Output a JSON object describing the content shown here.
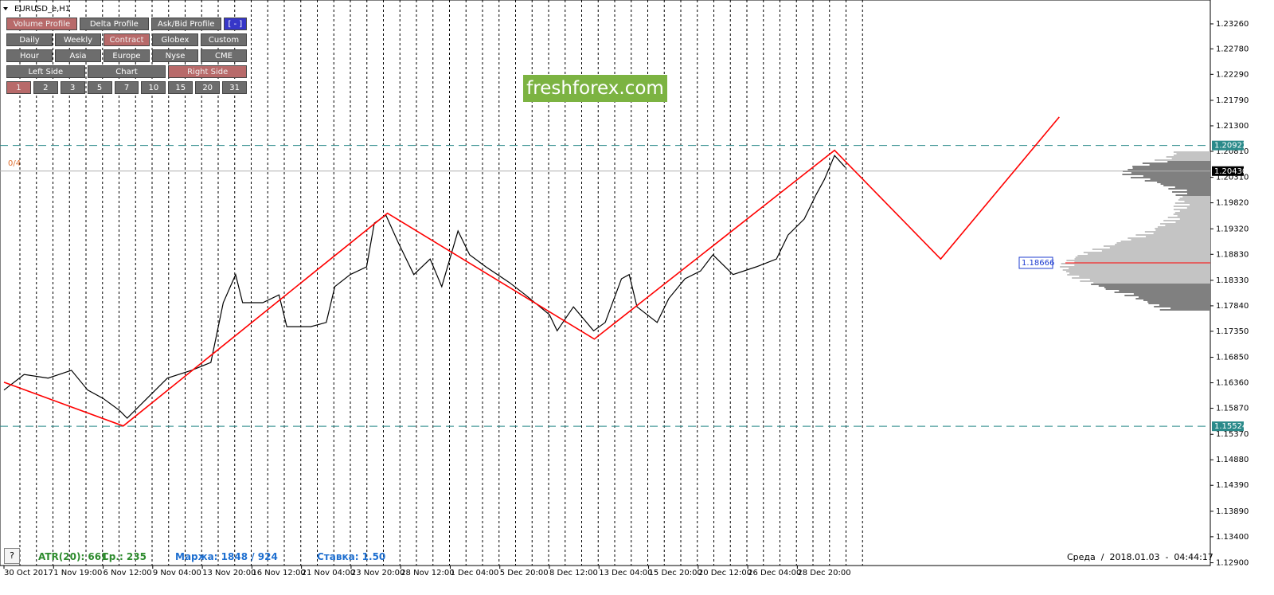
{
  "ui": {
    "symbol": "EURUSD_e,H1",
    "marker": "0/4",
    "brand": "freshforex.com",
    "help": "?",
    "buttons": [
      [
        {
          "label": "Volume Profile",
          "active": true
        },
        {
          "label": "Delta Profile",
          "active": false
        },
        {
          "label": "Ask/Bid Profile",
          "active": false
        },
        {
          "label": "[ - ]",
          "active": false,
          "blue": true
        }
      ],
      [
        {
          "label": "Daily",
          "active": false
        },
        {
          "label": "Weekly",
          "active": false
        },
        {
          "label": "Contract",
          "active": true
        },
        {
          "label": "Globex",
          "active": false
        },
        {
          "label": "Custom",
          "active": false
        }
      ],
      [
        {
          "label": "Hour",
          "active": false
        },
        {
          "label": "Asia",
          "active": false
        },
        {
          "label": "Europe",
          "active": false
        },
        {
          "label": "Nyse",
          "active": false
        },
        {
          "label": "CME",
          "active": false
        }
      ],
      [
        {
          "label": "Left Side",
          "active": false
        },
        {
          "label": "Chart",
          "active": false
        },
        {
          "label": "Right Side",
          "active": true
        }
      ],
      [
        {
          "label": "1",
          "active": true
        },
        {
          "label": "2",
          "active": false
        },
        {
          "label": "3",
          "active": false
        },
        {
          "label": "5",
          "active": false
        },
        {
          "label": "7",
          "active": false
        },
        {
          "label": "10",
          "active": false
        },
        {
          "label": "15",
          "active": false
        },
        {
          "label": "20",
          "active": false
        },
        {
          "label": "31",
          "active": false
        }
      ]
    ],
    "status": [
      {
        "text": "ATR(20): 661",
        "color": "#2e8b2e"
      },
      {
        "text": "Ср.: 235",
        "color": "#2e8b2e"
      },
      {
        "text": "Маржа: 1848 / 924",
        "color": "#1e6fd0"
      },
      {
        "text": "Ставка: 1.50",
        "color": "#1e6fd0"
      }
    ],
    "clock": "Среда  /  2018.01.03  -  04:44:17"
  },
  "chart_data": {
    "type": "line",
    "xlim": [
      -5.14,
      1557
    ],
    "ylim": [
      1.12847,
      1.23719
    ],
    "xticks": [
      {
        "value": 0,
        "label": "30 Oct 2017"
      },
      {
        "value": 64,
        "label": "1 Nov 19:00"
      },
      {
        "value": 128,
        "label": "6 Nov 12:00"
      },
      {
        "value": 192,
        "label": "9 Nov 04:00"
      },
      {
        "value": 256,
        "label": "13 Nov 20:00"
      },
      {
        "value": 320,
        "label": "16 Nov 12:00"
      },
      {
        "value": 384,
        "label": "21 Nov 04:00"
      },
      {
        "value": 448,
        "label": "23 Nov 20:00"
      },
      {
        "value": 512,
        "label": "28 Nov 12:00"
      },
      {
        "value": 576,
        "label": "1 Dec 04:00"
      },
      {
        "value": 640,
        "label": "5 Dec 20:00"
      },
      {
        "value": 704,
        "label": "8 Dec 12:00"
      },
      {
        "value": 768,
        "label": "13 Dec 04:00"
      },
      {
        "value": 832,
        "label": "15 Dec 20:00"
      },
      {
        "value": 896,
        "label": "20 Dec 12:00"
      },
      {
        "value": 960,
        "label": "26 Dec 04:00"
      },
      {
        "value": 1024,
        "label": "28 Dec 20:00"
      }
    ],
    "yticks": [
      {
        "value": 1.2326,
        "label": "1.23260"
      },
      {
        "value": 1.2278,
        "label": "1.22780"
      },
      {
        "value": 1.2229,
        "label": "1.22290"
      },
      {
        "value": 1.2179,
        "label": "1.21790"
      },
      {
        "value": 1.213,
        "label": "1.21300"
      },
      {
        "value": 1.2081,
        "label": "1.20810"
      },
      {
        "value": 1.2031,
        "label": "1.20310"
      },
      {
        "value": 1.1982,
        "label": "1.19820"
      },
      {
        "value": 1.1932,
        "label": "1.19320"
      },
      {
        "value": 1.1883,
        "label": "1.18830"
      },
      {
        "value": 1.1833,
        "label": "1.18330"
      },
      {
        "value": 1.1784,
        "label": "1.17840"
      },
      {
        "value": 1.1735,
        "label": "1.17350"
      },
      {
        "value": 1.1685,
        "label": "1.16850"
      },
      {
        "value": 1.1636,
        "label": "1.16360"
      },
      {
        "value": 1.1587,
        "label": "1.15870"
      },
      {
        "value": 1.1537,
        "label": "1.15370"
      },
      {
        "value": 1.1488,
        "label": "1.14880"
      },
      {
        "value": 1.1439,
        "label": "1.14390"
      },
      {
        "value": 1.1389,
        "label": "1.13890"
      },
      {
        "value": 1.134,
        "label": "1.13400"
      },
      {
        "value": 1.129,
        "label": "1.12900"
      }
    ],
    "series": [
      {
        "color": "#000000",
        "x": [
          0,
          26,
          57,
          87,
          108,
          128,
          149,
          159,
          180,
          211,
          242,
          267,
          283,
          299,
          308,
          334,
          355,
          365,
          396,
          416,
          427,
          447,
          468,
          478,
          493,
          509,
          529,
          550,
          565,
          586,
          601,
          622,
          653,
          673,
          704,
          714,
          735,
          761,
          776,
          797,
          807,
          817,
          843,
          858,
          879,
          899,
          915,
          941,
          971,
          997,
          1012,
          1033,
          1048,
          1059,
          1072,
          1086
        ],
        "values": [
          1.1622,
          1.1652,
          1.1645,
          1.166,
          1.1622,
          1.1606,
          1.1583,
          1.1568,
          1.1599,
          1.1645,
          1.166,
          1.1675,
          1.179,
          1.1844,
          1.179,
          1.179,
          1.1805,
          1.1744,
          1.1744,
          1.1752,
          1.1821,
          1.1844,
          1.1859,
          1.1943,
          1.1958,
          1.1905,
          1.1844,
          1.1874,
          1.1821,
          1.1928,
          1.1882,
          1.1859,
          1.1828,
          1.1805,
          1.1767,
          1.1736,
          1.1782,
          1.1736,
          1.1752,
          1.1836,
          1.1844,
          1.1782,
          1.1752,
          1.1798,
          1.1836,
          1.1851,
          1.1882,
          1.1844,
          1.1859,
          1.1874,
          1.192,
          1.1951,
          1.1997,
          1.2027,
          1.2073,
          1.205
        ]
      },
      {
        "color": "#ff0000",
        "x": [
          0,
          154,
          495,
          762,
          1072,
          1209,
          1362
        ],
        "values": [
          1.1637,
          1.1553,
          1.1962,
          1.172,
          1.2083,
          1.1874,
          1.2147
        ]
      }
    ],
    "levels": [
      {
        "value": 1.20922,
        "label": "1.20922",
        "color": "#2a8a8a",
        "style": "dashed",
        "tag": "#2a8a8a"
      },
      {
        "value": 1.2043,
        "label": "1.20430",
        "color": "#b0b0b0",
        "style": "solid",
        "tag": "#000000"
      },
      {
        "value": 1.15524,
        "label": "1.15524",
        "color": "#2a8a8a",
        "style": "dashed",
        "tag": "#2a8a8a"
      }
    ],
    "poc": {
      "value": 1.18666,
      "label": "1.18666",
      "color": "#ff0000"
    }
  }
}
